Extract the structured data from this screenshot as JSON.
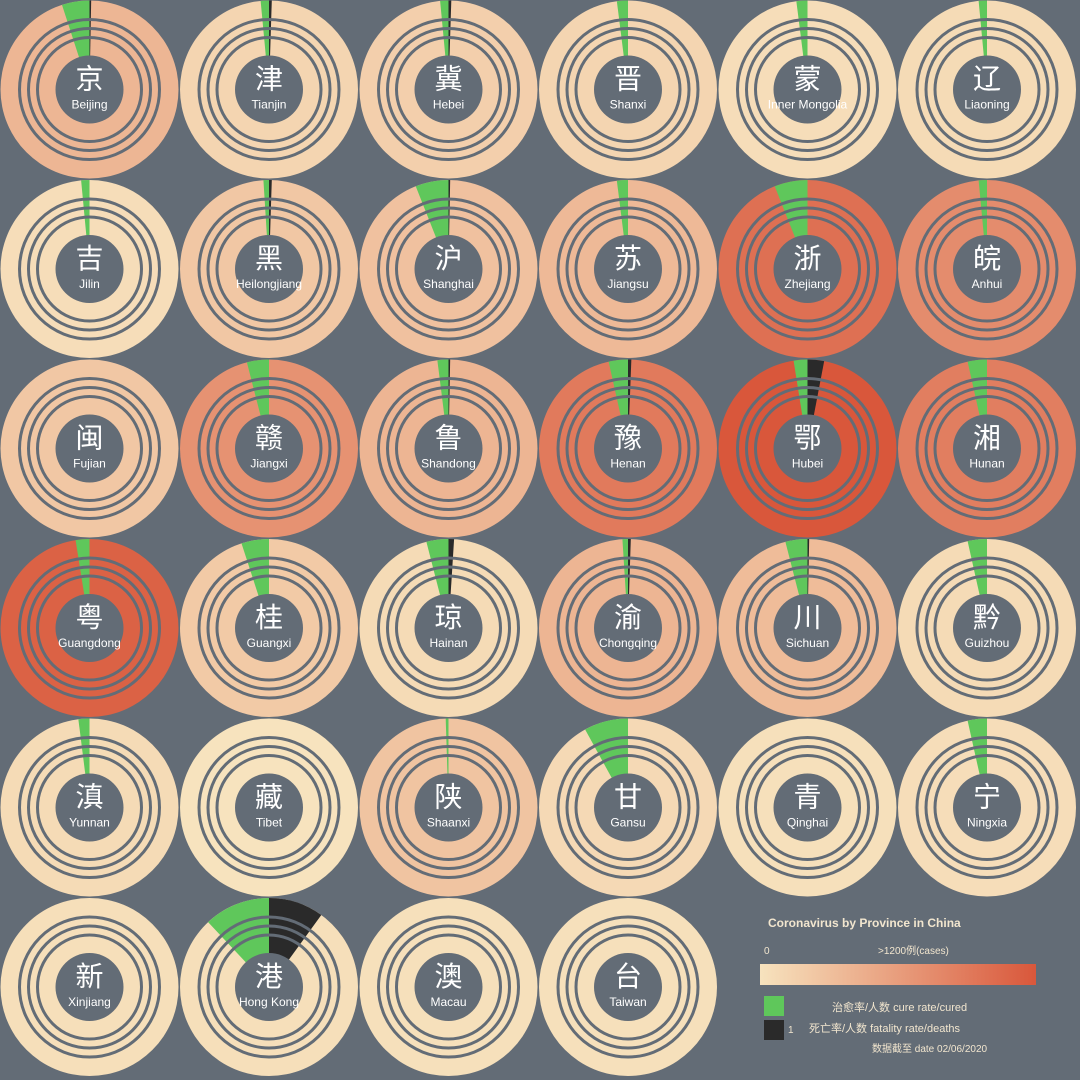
{
  "chart_data": {
    "type": "radial-grid",
    "title": "Coronavirus by Province in China",
    "legend": {
      "scale_min_label": "0",
      "scale_max_label": ">1200例(cases)",
      "color_low": "#f7e3be",
      "color_high": "#d9573b",
      "cure_label": "治愈率/人数 cure rate/cured",
      "fatality_label": "死亡率/人数 fatality rate/deaths",
      "cure_color": "#5fc75b",
      "death_color": "#2a2a2a",
      "cure_sample_value": "",
      "death_sample_value": "1",
      "date_note": "数据截至 date 02/06/2020"
    },
    "provinces": [
      {
        "char": "京",
        "name": "Beijing",
        "intensity": 0.32,
        "cure_rate": 0.05,
        "fatality_rate": 0.003
      },
      {
        "char": "津",
        "name": "Tianjin",
        "intensity": 0.1,
        "cure_rate": 0.015,
        "fatality_rate": 0.005
      },
      {
        "char": "冀",
        "name": "Hebei",
        "intensity": 0.14,
        "cure_rate": 0.015,
        "fatality_rate": 0.005
      },
      {
        "char": "晋",
        "name": "Shanxi",
        "intensity": 0.1,
        "cure_rate": 0.02,
        "fatality_rate": 0
      },
      {
        "char": "蒙",
        "name": "Inner Mongolia",
        "intensity": 0.04,
        "cure_rate": 0.02,
        "fatality_rate": 0
      },
      {
        "char": "辽",
        "name": "Liaoning",
        "intensity": 0.06,
        "cure_rate": 0.015,
        "fatality_rate": 0
      },
      {
        "char": "吉",
        "name": "Jilin",
        "intensity": 0.04,
        "cure_rate": 0.015,
        "fatality_rate": 0
      },
      {
        "char": "黑",
        "name": "Heilongjiang",
        "intensity": 0.2,
        "cure_rate": 0.01,
        "fatality_rate": 0.005
      },
      {
        "char": "沪",
        "name": "Shanghai",
        "intensity": 0.24,
        "cure_rate": 0.06,
        "fatality_rate": 0.003
      },
      {
        "char": "苏",
        "name": "Jiangsu",
        "intensity": 0.3,
        "cure_rate": 0.02,
        "fatality_rate": 0
      },
      {
        "char": "浙",
        "name": "Zhejiang",
        "intensity": 0.82,
        "cure_rate": 0.06,
        "fatality_rate": 0
      },
      {
        "char": "皖",
        "name": "Anhui",
        "intensity": 0.62,
        "cure_rate": 0.015,
        "fatality_rate": 0
      },
      {
        "char": "闽",
        "name": "Fujian",
        "intensity": 0.2,
        "cure_rate": 0,
        "fatality_rate": 0
      },
      {
        "char": "赣",
        "name": "Jiangxi",
        "intensity": 0.58,
        "cure_rate": 0.04,
        "fatality_rate": 0
      },
      {
        "char": "鲁",
        "name": "Shandong",
        "intensity": 0.33,
        "cure_rate": 0.02,
        "fatality_rate": 0.003
      },
      {
        "char": "豫",
        "name": "Henan",
        "intensity": 0.75,
        "cure_rate": 0.035,
        "fatality_rate": 0.006
      },
      {
        "char": "鄂",
        "name": "Hubei",
        "intensity": 1.0,
        "cure_rate": 0.025,
        "fatality_rate": 0.03
      },
      {
        "char": "湘",
        "name": "Hunan",
        "intensity": 0.72,
        "cure_rate": 0.035,
        "fatality_rate": 0
      },
      {
        "char": "粤",
        "name": "Guangdong",
        "intensity": 0.92,
        "cure_rate": 0.025,
        "fatality_rate": 0
      },
      {
        "char": "桂",
        "name": "Guangxi",
        "intensity": 0.18,
        "cure_rate": 0.05,
        "fatality_rate": 0
      },
      {
        "char": "琼",
        "name": "Hainan",
        "intensity": 0.06,
        "cure_rate": 0.04,
        "fatality_rate": 0.01
      },
      {
        "char": "渝",
        "name": "Chongqing",
        "intensity": 0.33,
        "cure_rate": 0.01,
        "fatality_rate": 0.005
      },
      {
        "char": "川",
        "name": "Sichuan",
        "intensity": 0.28,
        "cure_rate": 0.04,
        "fatality_rate": 0.003
      },
      {
        "char": "黔",
        "name": "Guizhou",
        "intensity": 0.06,
        "cure_rate": 0.035,
        "fatality_rate": 0
      },
      {
        "char": "滇",
        "name": "Yunnan",
        "intensity": 0.06,
        "cure_rate": 0.02,
        "fatality_rate": 0
      },
      {
        "char": "藏",
        "name": "Tibet",
        "intensity": 0.0,
        "cure_rate": 0,
        "fatality_rate": 0
      },
      {
        "char": "陕",
        "name": "Shaanxi",
        "intensity": 0.22,
        "cure_rate": 0.005,
        "fatality_rate": 0
      },
      {
        "char": "甘",
        "name": "Gansu",
        "intensity": 0.07,
        "cure_rate": 0.08,
        "fatality_rate": 0
      },
      {
        "char": "青",
        "name": "Qinghai",
        "intensity": 0.02,
        "cure_rate": 0,
        "fatality_rate": 0
      },
      {
        "char": "宁",
        "name": "Ningxia",
        "intensity": 0.04,
        "cure_rate": 0.035,
        "fatality_rate": 0
      },
      {
        "char": "新",
        "name": "Xinjiang",
        "intensity": 0.03,
        "cure_rate": 0,
        "fatality_rate": 0
      },
      {
        "char": "港",
        "name": "Hong Kong",
        "intensity": 0.03,
        "cure_rate": 0.12,
        "fatality_rate": 0.1
      },
      {
        "char": "澳",
        "name": "Macau",
        "intensity": 0.02,
        "cure_rate": 0,
        "fatality_rate": 0
      },
      {
        "char": "台",
        "name": "Taiwan",
        "intensity": 0.02,
        "cure_rate": 0,
        "fatality_rate": 0
      }
    ]
  }
}
